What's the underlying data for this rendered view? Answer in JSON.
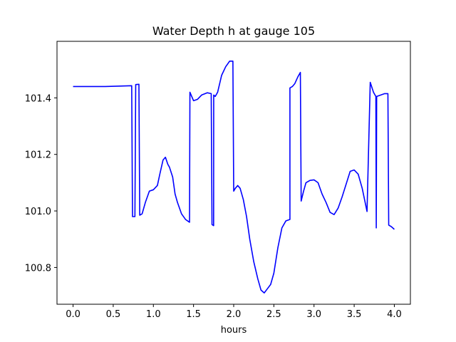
{
  "chart_data": {
    "type": "line",
    "title": "Water Depth h at gauge 105",
    "xlabel": "hours",
    "ylabel": "",
    "xlim": [
      -0.2,
      4.2
    ],
    "ylim": [
      100.67,
      101.6
    ],
    "xticks": [
      0.0,
      0.5,
      1.0,
      1.5,
      2.0,
      2.5,
      3.0,
      3.5,
      4.0
    ],
    "xtick_labels": [
      "0.0",
      "0.5",
      "1.0",
      "1.5",
      "2.0",
      "2.5",
      "3.0",
      "3.5",
      "4.0"
    ],
    "yticks": [
      100.8,
      101.0,
      101.2,
      101.4
    ],
    "ytick_labels": [
      "100.8",
      "101.0",
      "101.2",
      "101.4"
    ],
    "grid": false,
    "series": [
      {
        "color": "#0000ff",
        "x": [
          0.0,
          0.4,
          0.73,
          0.74,
          0.77,
          0.78,
          0.82,
          0.83,
          0.86,
          0.9,
          0.95,
          1.0,
          1.05,
          1.08,
          1.12,
          1.15,
          1.18,
          1.2,
          1.24,
          1.27,
          1.3,
          1.35,
          1.4,
          1.45,
          1.455,
          1.5,
          1.55,
          1.6,
          1.67,
          1.72,
          1.73,
          1.75,
          1.751,
          1.77,
          1.8,
          1.85,
          1.9,
          1.95,
          1.99,
          2.0,
          2.02,
          2.05,
          2.08,
          2.12,
          2.16,
          2.2,
          2.25,
          2.3,
          2.34,
          2.38,
          2.42,
          2.46,
          2.5,
          2.55,
          2.6,
          2.65,
          2.7,
          2.7,
          2.73,
          2.76,
          2.8,
          2.83,
          2.84,
          2.87,
          2.9,
          2.95,
          3.0,
          3.05,
          3.1,
          3.15,
          3.2,
          3.25,
          3.3,
          3.35,
          3.4,
          3.45,
          3.5,
          3.55,
          3.6,
          3.66,
          3.7,
          3.7,
          3.74,
          3.77,
          3.775,
          3.78,
          3.83,
          3.88,
          3.92,
          3.93,
          3.96,
          4.0
        ],
        "y": [
          101.44,
          101.44,
          101.443,
          100.98,
          100.98,
          101.447,
          101.448,
          100.985,
          100.99,
          101.03,
          101.07,
          101.075,
          101.09,
          101.13,
          101.18,
          101.19,
          101.165,
          101.155,
          101.12,
          101.06,
          101.03,
          100.99,
          100.97,
          100.96,
          101.42,
          101.39,
          101.395,
          101.41,
          101.418,
          101.415,
          100.952,
          100.948,
          101.41,
          101.405,
          101.42,
          101.48,
          101.51,
          101.53,
          101.53,
          101.07,
          101.08,
          101.09,
          101.08,
          101.04,
          100.98,
          100.9,
          100.82,
          100.76,
          100.72,
          100.71,
          100.725,
          100.74,
          100.78,
          100.87,
          100.94,
          100.965,
          100.97,
          101.435,
          101.44,
          101.45,
          101.475,
          101.49,
          101.035,
          101.07,
          101.1,
          101.108,
          101.11,
          101.1,
          101.06,
          101.03,
          100.995,
          100.987,
          101.01,
          101.05,
          101.095,
          101.14,
          101.145,
          101.13,
          101.08,
          100.998,
          101.455,
          101.455,
          101.42,
          101.405,
          100.94,
          101.405,
          101.41,
          101.415,
          101.415,
          100.95,
          100.945,
          100.935
        ]
      }
    ]
  }
}
